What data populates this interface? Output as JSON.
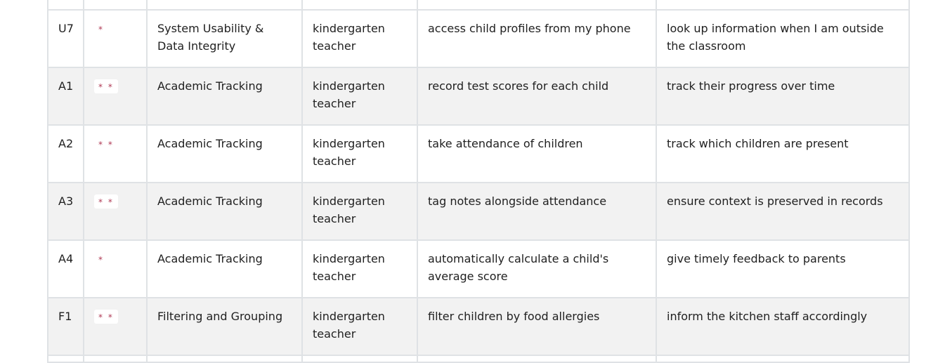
{
  "table": {
    "rows": [
      {
        "id": "U7",
        "priority": "*",
        "category": "System Usability & Data Integrity",
        "role": "kindergarten teacher",
        "want": "access child profiles from my phone",
        "benefit": "look up information when I am outside the classroom"
      },
      {
        "id": "A1",
        "priority": "* *",
        "category": "Academic Tracking",
        "role": "kindergarten teacher",
        "want": "record test scores for each child",
        "benefit": "track their progress over time"
      },
      {
        "id": "A2",
        "priority": "* *",
        "category": "Academic Tracking",
        "role": "kindergarten teacher",
        "want": "take attendance of children",
        "benefit": "track which children are present"
      },
      {
        "id": "A3",
        "priority": "* *",
        "category": "Academic Tracking",
        "role": "kindergarten teacher",
        "want": "tag notes alongside attendance",
        "benefit": "ensure context is preserved in records"
      },
      {
        "id": "A4",
        "priority": "*",
        "category": "Academic Tracking",
        "role": "kindergarten teacher",
        "want": "automatically calculate a child's average score",
        "benefit": "give timely feedback to parents"
      },
      {
        "id": "F1",
        "priority": "* *",
        "category": "Filtering and Grouping",
        "role": "kindergarten teacher",
        "want": "filter children by food allergies",
        "benefit": "inform the kitchen staff accordingly"
      }
    ]
  }
}
